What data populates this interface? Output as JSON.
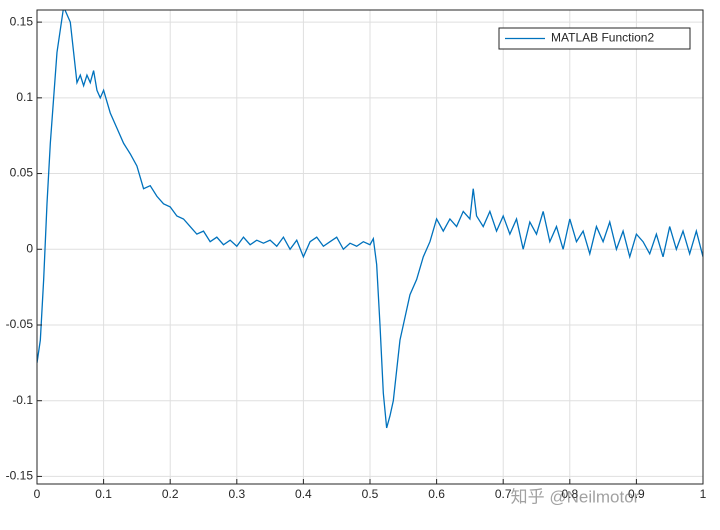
{
  "chart_data": {
    "type": "line",
    "x": [
      0,
      0.005,
      0.01,
      0.015,
      0.02,
      0.025,
      0.03,
      0.035,
      0.04,
      0.045,
      0.05,
      0.055,
      0.06,
      0.065,
      0.07,
      0.075,
      0.08,
      0.085,
      0.09,
      0.095,
      0.1,
      0.11,
      0.12,
      0.13,
      0.14,
      0.15,
      0.16,
      0.17,
      0.18,
      0.19,
      0.2,
      0.21,
      0.22,
      0.23,
      0.24,
      0.25,
      0.26,
      0.27,
      0.28,
      0.29,
      0.3,
      0.31,
      0.32,
      0.33,
      0.34,
      0.35,
      0.36,
      0.37,
      0.38,
      0.39,
      0.4,
      0.41,
      0.42,
      0.43,
      0.44,
      0.45,
      0.46,
      0.47,
      0.48,
      0.49,
      0.5,
      0.505,
      0.51,
      0.515,
      0.52,
      0.525,
      0.53,
      0.535,
      0.54,
      0.545,
      0.55,
      0.56,
      0.57,
      0.58,
      0.59,
      0.6,
      0.61,
      0.62,
      0.63,
      0.64,
      0.65,
      0.655,
      0.66,
      0.67,
      0.68,
      0.69,
      0.7,
      0.71,
      0.72,
      0.73,
      0.74,
      0.75,
      0.76,
      0.77,
      0.78,
      0.79,
      0.8,
      0.81,
      0.82,
      0.83,
      0.84,
      0.85,
      0.86,
      0.87,
      0.88,
      0.89,
      0.9,
      0.91,
      0.92,
      0.93,
      0.94,
      0.95,
      0.96,
      0.97,
      0.98,
      0.99,
      1
    ],
    "series": [
      {
        "name": "MATLAB Function2",
        "color": "#0072bd",
        "values": [
          -0.075,
          -0.06,
          -0.02,
          0.03,
          0.07,
          0.1,
          0.13,
          0.145,
          0.16,
          0.155,
          0.15,
          0.13,
          0.11,
          0.115,
          0.108,
          0.115,
          0.11,
          0.118,
          0.105,
          0.1,
          0.105,
          0.09,
          0.08,
          0.07,
          0.063,
          0.055,
          0.04,
          0.042,
          0.035,
          0.03,
          0.028,
          0.022,
          0.02,
          0.015,
          0.01,
          0.012,
          0.005,
          0.008,
          0.003,
          0.006,
          0.002,
          0.008,
          0.003,
          0.006,
          0.004,
          0.006,
          0.002,
          0.008,
          0,
          0.006,
          -0.005,
          0.005,
          0.008,
          0.002,
          0.005,
          0.008,
          0,
          0.004,
          0.002,
          0.005,
          0.003,
          0.007,
          -0.01,
          -0.05,
          -0.095,
          -0.118,
          -0.11,
          -0.1,
          -0.08,
          -0.06,
          -0.05,
          -0.03,
          -0.02,
          -0.005,
          0.005,
          0.02,
          0.012,
          0.02,
          0.015,
          0.025,
          0.02,
          0.04,
          0.022,
          0.015,
          0.025,
          0.012,
          0.022,
          0.01,
          0.02,
          0,
          0.018,
          0.01,
          0.025,
          0.005,
          0.015,
          0,
          0.02,
          0.005,
          0.012,
          -0.003,
          0.015,
          0.005,
          0.018,
          0,
          0.012,
          -0.005,
          0.01,
          0.005,
          -0.003,
          0.01,
          -0.005,
          0.015,
          0,
          0.012,
          -0.003,
          0.012,
          -0.005
        ]
      }
    ],
    "xlim": [
      0,
      1
    ],
    "xticks": [
      0,
      0.1,
      0.2,
      0.3,
      0.4,
      0.5,
      0.6,
      0.7,
      0.8,
      0.9,
      1
    ],
    "ylim": [
      -0.155,
      0.158
    ],
    "yticks": [
      -0.15,
      -0.1,
      -0.05,
      0,
      0.05,
      0.1,
      0.15
    ],
    "grid": true,
    "legend": "upper right",
    "watermark": "知乎 @Neilmotor"
  }
}
